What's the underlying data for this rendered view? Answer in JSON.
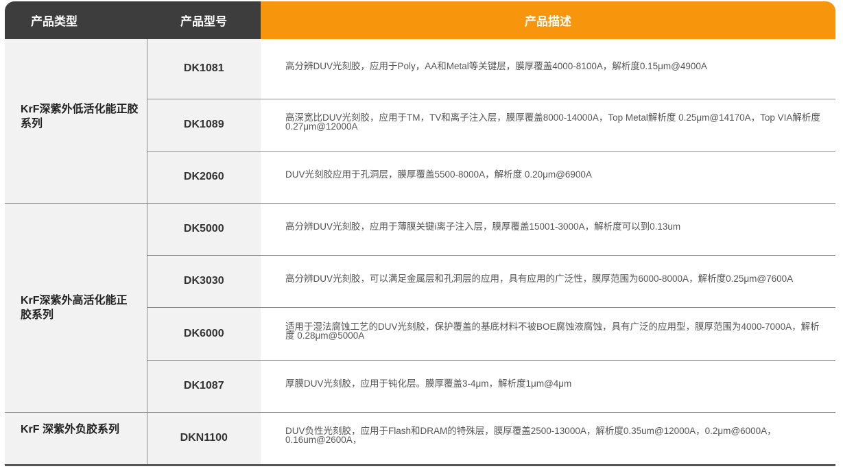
{
  "header": {
    "type": "产品类型",
    "model": "产品型号",
    "description": "产品描述"
  },
  "colors": {
    "header_dark": "#3d3d3d",
    "header_accent": "#f7960d",
    "row_bg": "#f2f2f2"
  },
  "groups": [
    {
      "category": "KrF深紫外低活化能正胶系列",
      "rows": [
        {
          "model": "DK1081",
          "description": "高分辨DUV光刻胶，应用于Poly，AA和Metal等关键层，膜厚覆盖4000-8100A，解析度0.15μm@4900A"
        },
        {
          "model": "DK1089",
          "description": "高深宽比DUV光刻胶，应用于TM，TV和离子注入层，膜厚覆盖8000-14000A，Top Metal解析度 0.25μm@14170A，Top VIA解析度0.27μm@12000A"
        },
        {
          "model": "DK2060",
          "description": "DUV光刻胶应用于孔洞层，膜厚覆盖5500-8000A，解析度 0.20μm@6900A"
        }
      ]
    },
    {
      "category": "KrF深紫外高活化能正胶系列",
      "rows": [
        {
          "model": "DK5000",
          "description": "高分辨DUV光刻胶，应用于薄膜关键i离子注入层，膜厚覆盖15001-3000A，解析度可以到0.13um"
        },
        {
          "model": "DK3030",
          "description": "高分辨DUV光刻胶，可以满足金属层和孔洞层的应用，具有应用的广泛性，膜厚范围为6000-8000A，解析度0.25μm@7600A"
        },
        {
          "model": "DK6000",
          "description": "适用于湿法腐蚀工艺的DUV光刻胶，保护覆盖的基底材料不被BOE腐蚀液腐蚀，具有广泛的应用型，膜厚范围为4000-7000A，解析度 0.28μm@5000A"
        },
        {
          "model": "DK1087",
          "description": "厚膜DUV光刻胶，应用于钝化层。膜厚覆盖3-4μm，解析度1μm@4μm"
        }
      ]
    },
    {
      "category": "KrF 深紫外负胶系列",
      "rows": [
        {
          "model": "DKN1100",
          "description": "DUV负性光刻胶，应用于Flash和DRAM的特殊层，膜厚覆盖2500-13000A，解析度0.35um@12000A，0.2μm@6000A，0.16um@2600A，"
        }
      ]
    }
  ]
}
